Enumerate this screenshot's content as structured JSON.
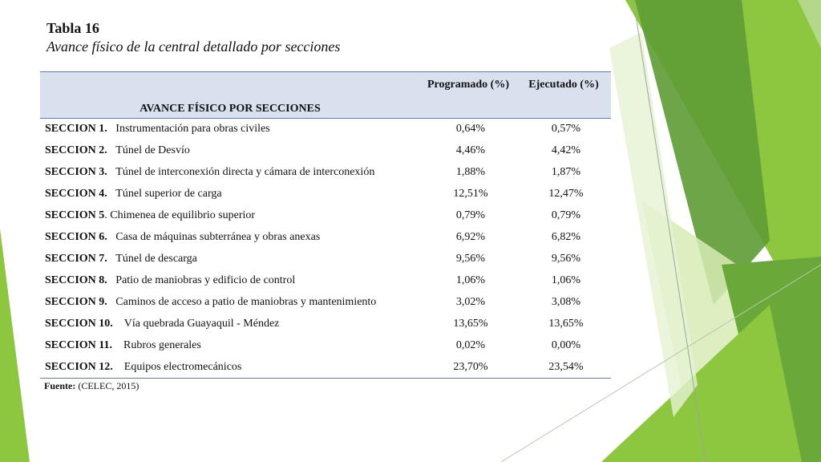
{
  "heading": {
    "table_number": "Tabla 16",
    "caption": "Avance físico de la central detallado por secciones"
  },
  "table": {
    "header_section": "AVANCE FÍSICO POR SECCIONES",
    "header_programado": "Programado (%)",
    "header_ejecutado": "Ejecutado (%)",
    "rows": [
      {
        "code": "SECCION 1.",
        "name": "Instrumentación para obras civiles",
        "programado": "0,64%",
        "ejecutado": "0,57%"
      },
      {
        "code": "SECCION 2.",
        "name": "Túnel de Desvío",
        "programado": "4,46%",
        "ejecutado": "4,42%"
      },
      {
        "code": "SECCION 3.",
        "name": "Túnel de interconexión directa y cámara de interconexión",
        "programado": "1,88%",
        "ejecutado": "1,87%"
      },
      {
        "code": "SECCION 4.",
        "name": "Túnel superior de carga",
        "programado": "12,51%",
        "ejecutado": "12,47%"
      },
      {
        "code": "SECCION 5",
        "name": ".  Chimenea de equilibrio superior",
        "programado": "0,79%",
        "ejecutado": "0,79%"
      },
      {
        "code": "SECCION 6.",
        "name": "Casa de máquinas subterránea y obras anexas",
        "programado": "6,92%",
        "ejecutado": "6,82%"
      },
      {
        "code": "SECCION 7.",
        "name": "Túnel de descarga",
        "programado": "9,56%",
        "ejecutado": "9,56%"
      },
      {
        "code": "SECCION 8.",
        "name": "Patio de maniobras y edificio de control",
        "programado": "1,06%",
        "ejecutado": "1,06%"
      },
      {
        "code": "SECCION 9.",
        "name": "Caminos de acceso a patio de maniobras y mantenimiento",
        "programado": "3,02%",
        "ejecutado": "3,08%"
      },
      {
        "code": "SECCION 10.",
        "name": "Vía quebrada Guayaquil - Méndez",
        "programado": "13,65%",
        "ejecutado": "13,65%"
      },
      {
        "code": "SECCION 11.",
        "name": "Rubros generales",
        "programado": "0,02%",
        "ejecutado": "0,00%"
      },
      {
        "code": "SECCION 12.",
        "name": "Equipos electromecánicos",
        "programado": "23,70%",
        "ejecutado": "23,54%"
      }
    ]
  },
  "source": {
    "label": "Fuente:",
    "text": "(CELEC, 2015)"
  },
  "theme": {
    "header_fill": "#d9e1ef",
    "header_rule": "#5b7db5",
    "green_dark": "#5a9a32",
    "green_mid": "#8dc63f",
    "green_light": "#d7ebb5"
  }
}
